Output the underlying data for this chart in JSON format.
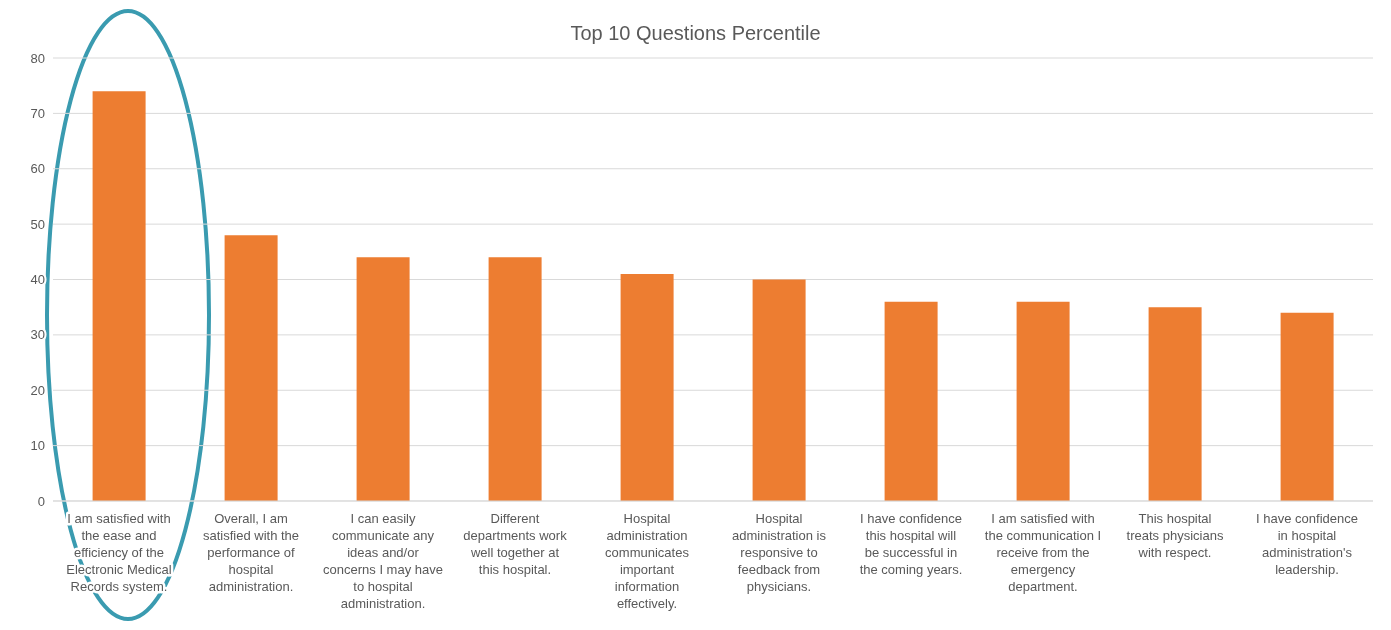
{
  "chart_data": {
    "type": "bar",
    "title": "Top 10 Questions Percentile",
    "categories": [
      "I am satisfied with the ease and efficiency of the Electronic Medical Records system.",
      "Overall, I am satisfied with the performance of hospital administration.",
      "I can easily communicate any ideas and/or concerns I may have to hospital administration.",
      "Different departments work well together at this hospital.",
      "Hospital administration communicates important information effectively.",
      "Hospital administration is responsive to feedback from physicians.",
      "I have confidence this hospital will be successful in the coming years.",
      "I am satisfied with the communication I receive from the emergency department.",
      "This hospital treats physicians with respect.",
      "I have confidence in hospital administration's leadership."
    ],
    "values": [
      74,
      48,
      44,
      44,
      41,
      40,
      36,
      36,
      35,
      34
    ],
    "color": "#ed7d31",
    "ylim": [
      0,
      80
    ],
    "yticks": [
      0,
      10,
      20,
      30,
      40,
      50,
      60,
      70,
      80
    ],
    "grid": "y"
  }
}
